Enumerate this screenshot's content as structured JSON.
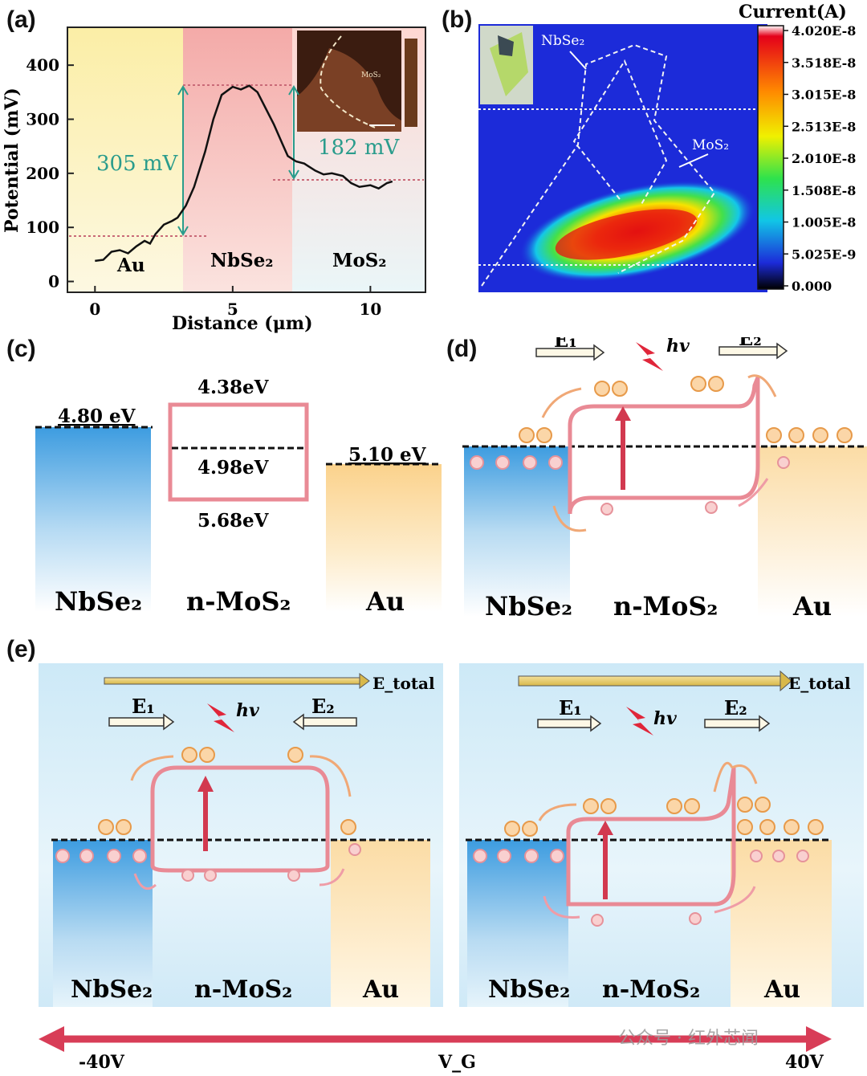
{
  "panel_labels": {
    "a": "(a)",
    "b": "(b)",
    "c": "(c)",
    "d": "(d)",
    "e": "(e)"
  },
  "panel_a": {
    "ylabel": "Potential (mV)",
    "xlabel": "Distance (μm)",
    "yticks": [
      "0",
      "100",
      "200",
      "300",
      "400"
    ],
    "xticks": [
      "0",
      "5",
      "10"
    ],
    "regions": [
      "Au",
      "NbSe₂",
      "MoS₂"
    ],
    "ann_left": "305 mV",
    "ann_right": "182 mV",
    "inset_label": "MoS₂",
    "colors": {
      "au": "#fbf1b8",
      "nbse2": "#f6b8b4",
      "mos2": "#e6f3f6",
      "annotation": "#2a9c8c"
    }
  },
  "panel_b": {
    "cbar_title": "Current(A)",
    "cbar_ticks": [
      "4.020E-8",
      "3.518E-8",
      "3.015E-8",
      "2.513E-8",
      "2.010E-8",
      "1.508E-8",
      "1.005E-8",
      "5.025E-9",
      "0.000"
    ],
    "label_nbse2": "NbSe₂",
    "label_mos2": "MoS₂",
    "colors": {
      "background": "#1c2bd9"
    }
  },
  "panel_c": {
    "nbse2_wf": "4.80 eV",
    "mos2_cb": "4.38eV",
    "mos2_ef": "4.98eV",
    "mos2_vb": "5.68eV",
    "au_wf": "5.10 eV",
    "labels": [
      "NbSe₂",
      "n-MoS₂",
      "Au"
    ]
  },
  "panel_d": {
    "e1": "E₁",
    "e2": "E₂",
    "hv": "hv",
    "labels": [
      "NbSe₂",
      "n-MoS₂",
      "Au"
    ]
  },
  "panel_e_left": {
    "etotal": "E_total",
    "e1": "E₁",
    "e2": "E₂",
    "hv": "hv",
    "labels": [
      "NbSe₂",
      "n-MoS₂",
      "Au"
    ]
  },
  "panel_e_right": {
    "etotal": "E_total",
    "e1": "E₁",
    "e2": "E₂",
    "hv": "hv",
    "labels": [
      "NbSe₂",
      "n-MoS₂",
      "Au"
    ]
  },
  "gate_axis": {
    "left": "-40V",
    "center": "V_G",
    "right": "40V"
  },
  "watermark": "公众号 · 红外芯闻",
  "chart_data": {
    "type": "line",
    "title": "",
    "xlabel": "Distance (μm)",
    "ylabel": "Potential (mV)",
    "xlim": [
      -1,
      12
    ],
    "ylim": [
      -20,
      470
    ],
    "x": [
      0,
      0.3,
      0.6,
      0.9,
      1.2,
      1.5,
      1.8,
      2.0,
      2.2,
      2.5,
      2.8,
      3.0,
      3.3,
      3.6,
      4.0,
      4.3,
      4.6,
      5.0,
      5.3,
      5.6,
      5.9,
      6.2,
      6.5,
      6.8,
      7.0,
      7.3,
      7.6,
      8.0,
      8.3,
      8.6,
      9.0,
      9.3,
      9.6,
      10.0,
      10.3,
      10.6,
      10.8
    ],
    "y": [
      38,
      40,
      55,
      58,
      52,
      65,
      75,
      70,
      88,
      105,
      112,
      118,
      140,
      175,
      240,
      300,
      345,
      360,
      355,
      362,
      350,
      320,
      290,
      255,
      232,
      222,
      218,
      205,
      198,
      200,
      195,
      182,
      175,
      178,
      172,
      182,
      185
    ]
  }
}
